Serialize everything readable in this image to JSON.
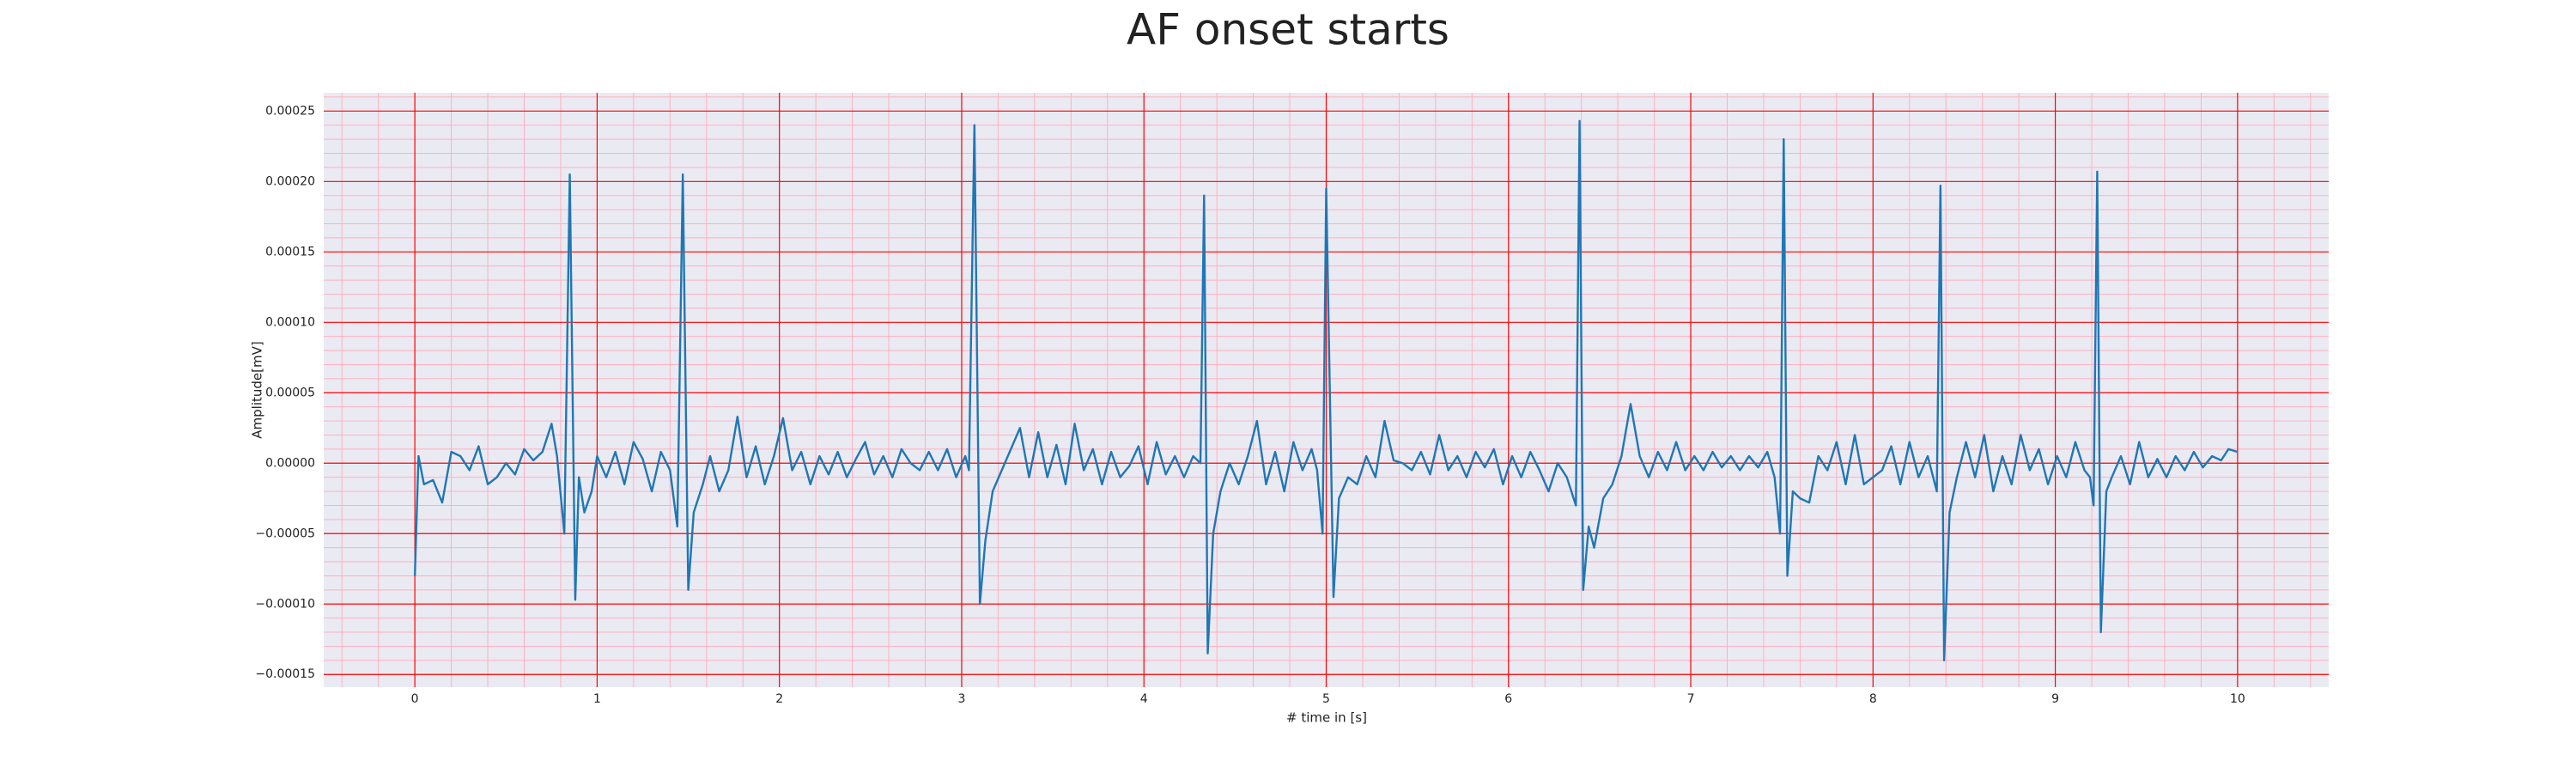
{
  "chart_data": {
    "type": "line",
    "title": "AF onset starts",
    "x_label": "# time in [s]",
    "y_label": "Amplitude[mV]",
    "color": "#1f77b4",
    "grid": true,
    "minor_grid": true,
    "grid_color": "#ff0000",
    "minor_grid_color": "#ffb0c0",
    "background": "#eaeaf2",
    "xlim": [
      -0.5,
      10.5
    ],
    "xticks": [
      0,
      1,
      2,
      3,
      4,
      5,
      6,
      7,
      8,
      9,
      10
    ],
    "ylim": [
      -0.000159,
      0.000263
    ],
    "yticks": [
      {
        "value": 0.00025,
        "label": "0.00025"
      },
      {
        "value": 0.0002,
        "label": "0.00020"
      },
      {
        "value": 0.00015,
        "label": "0.00015"
      },
      {
        "value": 0.0001,
        "label": "0.00010"
      },
      {
        "value": 5e-05,
        "label": "0.00005"
      },
      {
        "value": 0,
        "label": "0.00000"
      },
      {
        "value": -5e-05,
        "label": "−0.00005"
      },
      {
        "value": -0.0001,
        "label": "−0.00010"
      },
      {
        "value": -0.00015,
        "label": "−0.00015"
      }
    ],
    "x": [
      0,
      0.02,
      0.05,
      0.1,
      0.15,
      0.2,
      0.25,
      0.3,
      0.35,
      0.4,
      0.45,
      0.5,
      0.55,
      0.6,
      0.65,
      0.7,
      0.75,
      0.78,
      0.82,
      0.85,
      0.88,
      0.9,
      0.93,
      0.97,
      1.0,
      1.05,
      1.1,
      1.15,
      1.2,
      1.25,
      1.3,
      1.35,
      1.4,
      1.44,
      1.47,
      1.5,
      1.53,
      1.58,
      1.62,
      1.67,
      1.72,
      1.77,
      1.82,
      1.87,
      1.92,
      1.97,
      2.02,
      2.07,
      2.12,
      2.17,
      2.22,
      2.27,
      2.32,
      2.37,
      2.42,
      2.47,
      2.52,
      2.57,
      2.62,
      2.67,
      2.72,
      2.77,
      2.82,
      2.87,
      2.92,
      2.97,
      3.02,
      3.04,
      3.07,
      3.1,
      3.13,
      3.17,
      3.22,
      3.27,
      3.32,
      3.37,
      3.42,
      3.47,
      3.52,
      3.57,
      3.62,
      3.67,
      3.72,
      3.77,
      3.82,
      3.87,
      3.92,
      3.97,
      4.02,
      4.07,
      4.12,
      4.17,
      4.22,
      4.27,
      4.31,
      4.33,
      4.35,
      4.38,
      4.42,
      4.47,
      4.52,
      4.57,
      4.62,
      4.67,
      4.72,
      4.77,
      4.82,
      4.87,
      4.92,
      4.95,
      4.98,
      5.0,
      5.04,
      5.07,
      5.12,
      5.17,
      5.22,
      5.27,
      5.32,
      5.37,
      5.42,
      5.47,
      5.52,
      5.57,
      5.62,
      5.67,
      5.72,
      5.77,
      5.82,
      5.87,
      5.92,
      5.97,
      6.02,
      6.07,
      6.12,
      6.17,
      6.22,
      6.27,
      6.32,
      6.37,
      6.39,
      6.41,
      6.44,
      6.47,
      6.52,
      6.57,
      6.62,
      6.67,
      6.72,
      6.77,
      6.82,
      6.87,
      6.92,
      6.97,
      7.02,
      7.07,
      7.12,
      7.17,
      7.22,
      7.27,
      7.32,
      7.37,
      7.42,
      7.46,
      7.49,
      7.51,
      7.53,
      7.56,
      7.6,
      7.65,
      7.7,
      7.75,
      7.8,
      7.85,
      7.9,
      7.95,
      8.0,
      8.05,
      8.1,
      8.15,
      8.2,
      8.25,
      8.3,
      8.35,
      8.37,
      8.39,
      8.42,
      8.46,
      8.51,
      8.56,
      8.61,
      8.66,
      8.71,
      8.76,
      8.81,
      8.86,
      8.91,
      8.96,
      9.01,
      9.06,
      9.11,
      9.16,
      9.19,
      9.21,
      9.23,
      9.25,
      9.28,
      9.31,
      9.36,
      9.41,
      9.46,
      9.51,
      9.56,
      9.61,
      9.66,
      9.71,
      9.76,
      9.81,
      9.86,
      9.91,
      9.95,
      10.0
    ],
    "values": [
      -8e-05,
      5e-06,
      -1.5e-05,
      -1.2e-05,
      -2.8e-05,
      8e-06,
      5e-06,
      -5e-06,
      1.2e-05,
      -1.5e-05,
      -1e-05,
      0,
      -8e-06,
      1e-05,
      2e-06,
      8e-06,
      2.8e-05,
      5e-06,
      -5e-05,
      0.000205,
      -9.7e-05,
      -1e-05,
      -3.5e-05,
      -2e-05,
      5e-06,
      -1e-05,
      8e-06,
      -1.5e-05,
      1.5e-05,
      3e-06,
      -2e-05,
      8e-06,
      -5e-06,
      -4.5e-05,
      0.000205,
      -9e-05,
      -3.5e-05,
      -1.5e-05,
      5e-06,
      -2e-05,
      -5e-06,
      3.3e-05,
      -1e-05,
      1.2e-05,
      -1.5e-05,
      5e-06,
      3.2e-05,
      -5e-06,
      8e-06,
      -1.5e-05,
      5e-06,
      -8e-06,
      8e-06,
      -1e-05,
      3e-06,
      1.5e-05,
      -8e-06,
      5e-06,
      -1e-05,
      1e-05,
      0,
      -5e-06,
      8e-06,
      -5e-06,
      1e-05,
      -1e-05,
      5e-06,
      -5e-06,
      0.00024,
      -0.0001,
      -5.5e-05,
      -2e-05,
      -5e-06,
      1e-05,
      2.5e-05,
      -1e-05,
      2.2e-05,
      -1e-05,
      1.3e-05,
      -1.5e-05,
      2.8e-05,
      -5e-06,
      1e-05,
      -1.5e-05,
      8e-06,
      -1e-05,
      -2e-06,
      1.2e-05,
      -1.5e-05,
      1.5e-05,
      -8e-06,
      5e-06,
      -1e-05,
      5e-06,
      0,
      0.00019,
      -0.000135,
      -5e-05,
      -2e-05,
      0,
      -1.5e-05,
      5e-06,
      3e-05,
      -1.5e-05,
      8e-06,
      -2e-05,
      1.5e-05,
      -5e-06,
      1e-05,
      -5e-06,
      -5e-05,
      0.000195,
      -9.5e-05,
      -2.5e-05,
      -1e-05,
      -1.5e-05,
      5e-06,
      -1e-05,
      3e-05,
      2e-06,
      0,
      -5e-06,
      8e-06,
      -8e-06,
      2e-05,
      -5e-06,
      5e-06,
      -1e-05,
      8e-06,
      -3e-06,
      1e-05,
      -1.5e-05,
      5e-06,
      -1e-05,
      8e-06,
      -5e-06,
      -2e-05,
      0,
      -1e-05,
      -3e-05,
      0.000243,
      -9e-05,
      -4.5e-05,
      -6e-05,
      -2.5e-05,
      -1.5e-05,
      5e-06,
      4.2e-05,
      5e-06,
      -1e-05,
      8e-06,
      -5e-06,
      1.5e-05,
      -5e-06,
      5e-06,
      -5e-06,
      8e-06,
      -3e-06,
      5e-06,
      -5e-06,
      5e-06,
      -3e-06,
      8e-06,
      -1e-05,
      -5e-05,
      0.00023,
      -8e-05,
      -2e-05,
      -2.5e-05,
      -2.8e-05,
      5e-06,
      -5e-06,
      1.5e-05,
      -1.5e-05,
      2e-05,
      -1.5e-05,
      -1e-05,
      -5e-06,
      1.2e-05,
      -1.5e-05,
      1.5e-05,
      -1e-05,
      5e-06,
      -2e-05,
      0.000197,
      -0.00014,
      -3.5e-05,
      -1e-05,
      1.5e-05,
      -1e-05,
      2e-05,
      -2e-05,
      5e-06,
      -1.5e-05,
      2e-05,
      -5e-06,
      1e-05,
      -1.5e-05,
      5e-06,
      -1e-05,
      1.5e-05,
      -5e-06,
      -1e-05,
      -3e-05,
      0.000207,
      -0.00012,
      -2e-05,
      -1e-05,
      5e-06,
      -1.5e-05,
      1.5e-05,
      -1e-05,
      3e-06,
      -1e-05,
      5e-06,
      -5e-06,
      8e-06,
      -3e-06,
      5e-06,
      2e-06,
      1e-05,
      8e-06
    ]
  }
}
